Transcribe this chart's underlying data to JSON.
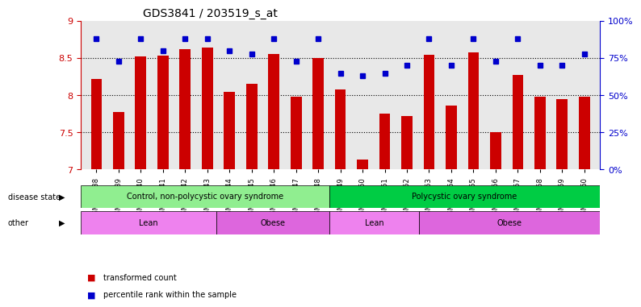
{
  "title": "GDS3841 / 203519_s_at",
  "samples": [
    "GSM277438",
    "GSM277439",
    "GSM277440",
    "GSM277441",
    "GSM277442",
    "GSM277443",
    "GSM277444",
    "GSM277445",
    "GSM277446",
    "GSM277447",
    "GSM277448",
    "GSM277449",
    "GSM277450",
    "GSM277451",
    "GSM277452",
    "GSM277453",
    "GSM277454",
    "GSM277455",
    "GSM277456",
    "GSM277457",
    "GSM277458",
    "GSM277459",
    "GSM277460"
  ],
  "transformed_count": [
    8.22,
    7.78,
    8.52,
    8.54,
    8.62,
    8.64,
    8.05,
    8.15,
    8.56,
    7.98,
    8.5,
    8.08,
    7.13,
    7.75,
    7.72,
    8.55,
    7.86,
    8.58,
    7.5,
    8.28,
    7.98,
    7.95,
    7.98
  ],
  "percentile": [
    88,
    73,
    88,
    80,
    88,
    88,
    80,
    78,
    88,
    73,
    88,
    65,
    63,
    65,
    70,
    88,
    70,
    88,
    73,
    88,
    70,
    70,
    78
  ],
  "ylim_left": [
    7,
    9
  ],
  "ylim_right": [
    0,
    100
  ],
  "yticks_left": [
    7,
    7.5,
    8,
    8.5,
    9
  ],
  "yticks_right": [
    0,
    25,
    50,
    75,
    100
  ],
  "ytick_labels_right": [
    "0%",
    "25%",
    "50%",
    "75%",
    "100%"
  ],
  "bar_color": "#cc0000",
  "dot_color": "#0000cc",
  "grid_color": "#000000",
  "left_axis_color": "#cc0000",
  "right_axis_color": "#0000cc",
  "disease_state_groups": [
    {
      "label": "Control, non-polycystic ovary syndrome",
      "start": 0,
      "end": 11,
      "color": "#90ee90"
    },
    {
      "label": "Polycystic ovary syndrome",
      "start": 11,
      "end": 23,
      "color": "#00cc44"
    }
  ],
  "other_groups": [
    {
      "label": "Lean",
      "start": 0,
      "end": 6,
      "color": "#ee82ee"
    },
    {
      "label": "Obese",
      "start": 6,
      "end": 11,
      "color": "#dd66dd"
    },
    {
      "label": "Lean",
      "start": 11,
      "end": 15,
      "color": "#ee82ee"
    },
    {
      "label": "Obese",
      "start": 15,
      "end": 23,
      "color": "#dd66dd"
    }
  ],
  "disease_state_label": "disease state",
  "other_label": "other",
  "legend_bar_label": "transformed count",
  "legend_dot_label": "percentile rank within the sample",
  "background_color": "#ffffff",
  "plot_bg_color": "#e8e8e8"
}
